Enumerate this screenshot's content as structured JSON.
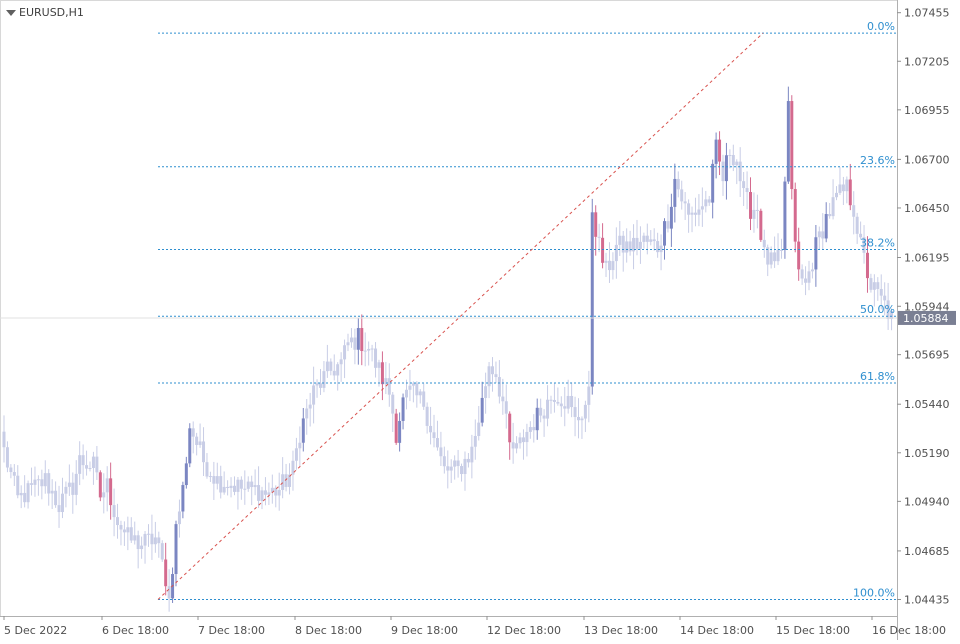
{
  "header": {
    "symbol": "EURUSD,H1"
  },
  "colors": {
    "bull": "#7b86c2",
    "bear": "#d46a8e",
    "range": "#c8cde6",
    "fib_line": "#2f8fcf",
    "fib_label": "#2f8fcf",
    "trend_line": "#d9534f",
    "axis_text": "#505050",
    "price_tag_bg": "#7a7f93"
  },
  "chart_data": {
    "type": "candlestick",
    "symbol": "EURUSD",
    "timeframe": "H1",
    "ylim": [
      1.0435,
      1.0751
    ],
    "y_ticks": [
      "1.07455",
      "1.07205",
      "1.06955",
      "1.06700",
      "1.06450",
      "1.06195",
      "1.05944",
      "1.05695",
      "1.05440",
      "1.05190",
      "1.04940",
      "1.04685",
      "1.04435"
    ],
    "x_ticks": [
      "5 Dec 2022",
      "6 Dec 18:00",
      "7 Dec 18:00",
      "8 Dec 18:00",
      "9 Dec 18:00",
      "12 Dec 18:00",
      "13 Dec 18:00",
      "14 Dec 18:00",
      "15 Dec 18:00",
      "16 Dec 18:00"
    ],
    "current_price": "1.05884",
    "fibonacci": {
      "high": 1.0735,
      "low": 1.04435,
      "levels": [
        {
          "label": "0.0%",
          "price": 1.0735
        },
        {
          "label": "23.6%",
          "price": 1.06662
        },
        {
          "label": "38.2%",
          "price": 1.06236
        },
        {
          "label": "50.0%",
          "price": 1.05893
        },
        {
          "label": "61.8%",
          "price": 1.05549
        },
        {
          "label": "100.0%",
          "price": 1.04435
        }
      ]
    },
    "trendline": {
      "from_price": 1.04435,
      "to_price": 1.0735
    },
    "waypoints": [
      [
        0,
        1.052
      ],
      [
        4,
        1.0495
      ],
      [
        8,
        1.05
      ],
      [
        12,
        1.0505
      ],
      [
        16,
        1.0492
      ],
      [
        20,
        1.0502
      ],
      [
        22,
        1.0515
      ],
      [
        26,
        1.0512
      ],
      [
        28,
        1.0497
      ],
      [
        30,
        1.0502
      ],
      [
        33,
        1.0484
      ],
      [
        36,
        1.0475
      ],
      [
        40,
        1.0472
      ],
      [
        44,
        1.0475
      ],
      [
        47,
        1.0455
      ],
      [
        48,
        1.0443
      ],
      [
        50,
        1.048
      ],
      [
        52,
        1.05
      ],
      [
        54,
        1.0533
      ],
      [
        58,
        1.0515
      ],
      [
        62,
        1.0505
      ],
      [
        66,
        1.0503
      ],
      [
        70,
        1.05
      ],
      [
        74,
        1.05
      ],
      [
        76,
        1.0498
      ],
      [
        80,
        1.05
      ],
      [
        84,
        1.051
      ],
      [
        86,
        1.053
      ],
      [
        90,
        1.055
      ],
      [
        94,
        1.056
      ],
      [
        98,
        1.0565
      ],
      [
        100,
        1.0575
      ],
      [
        103,
        1.0578
      ],
      [
        106,
        1.0573
      ],
      [
        108,
        1.0565
      ],
      [
        112,
        1.055
      ],
      [
        114,
        1.053
      ],
      [
        116,
        1.0545
      ],
      [
        118,
        1.055
      ],
      [
        122,
        1.0545
      ],
      [
        126,
        1.052
      ],
      [
        128,
        1.051
      ],
      [
        132,
        1.051
      ],
      [
        136,
        1.052
      ],
      [
        139,
        1.0545
      ],
      [
        141,
        1.0565
      ],
      [
        143,
        1.056
      ],
      [
        145,
        1.0545
      ],
      [
        147,
        1.0522
      ],
      [
        149,
        1.052
      ],
      [
        152,
        1.053
      ],
      [
        156,
        1.054
      ],
      [
        160,
        1.055
      ],
      [
        164,
        1.0545
      ],
      [
        166,
        1.0535
      ],
      [
        168,
        1.054
      ],
      [
        170,
        1.0548
      ],
      [
        171,
        1.0645
      ],
      [
        173,
        1.0625
      ],
      [
        175,
        1.0612
      ],
      [
        178,
        1.0625
      ],
      [
        182,
        1.0625
      ],
      [
        186,
        1.0628
      ],
      [
        190,
        1.0625
      ],
      [
        193,
        1.064
      ],
      [
        195,
        1.066
      ],
      [
        197,
        1.065
      ],
      [
        199,
        1.064
      ],
      [
        202,
        1.0645
      ],
      [
        205,
        1.065
      ],
      [
        207,
        1.0675
      ],
      [
        209,
        1.066
      ],
      [
        211,
        1.0675
      ],
      [
        213,
        1.067
      ],
      [
        215,
        1.065
      ],
      [
        217,
        1.0645
      ],
      [
        219,
        1.0645
      ],
      [
        221,
        1.062
      ],
      [
        224,
        1.0615
      ],
      [
        226,
        1.062
      ],
      [
        228,
        1.0698
      ],
      [
        229,
        1.065
      ],
      [
        231,
        1.061
      ],
      [
        233,
        1.0605
      ],
      [
        236,
        1.0625
      ],
      [
        239,
        1.064
      ],
      [
        242,
        1.065
      ],
      [
        245,
        1.0655
      ],
      [
        247,
        1.0645
      ],
      [
        249,
        1.0625
      ],
      [
        252,
        1.0605
      ],
      [
        256,
        1.0595
      ],
      [
        258,
        1.0588
      ]
    ]
  }
}
